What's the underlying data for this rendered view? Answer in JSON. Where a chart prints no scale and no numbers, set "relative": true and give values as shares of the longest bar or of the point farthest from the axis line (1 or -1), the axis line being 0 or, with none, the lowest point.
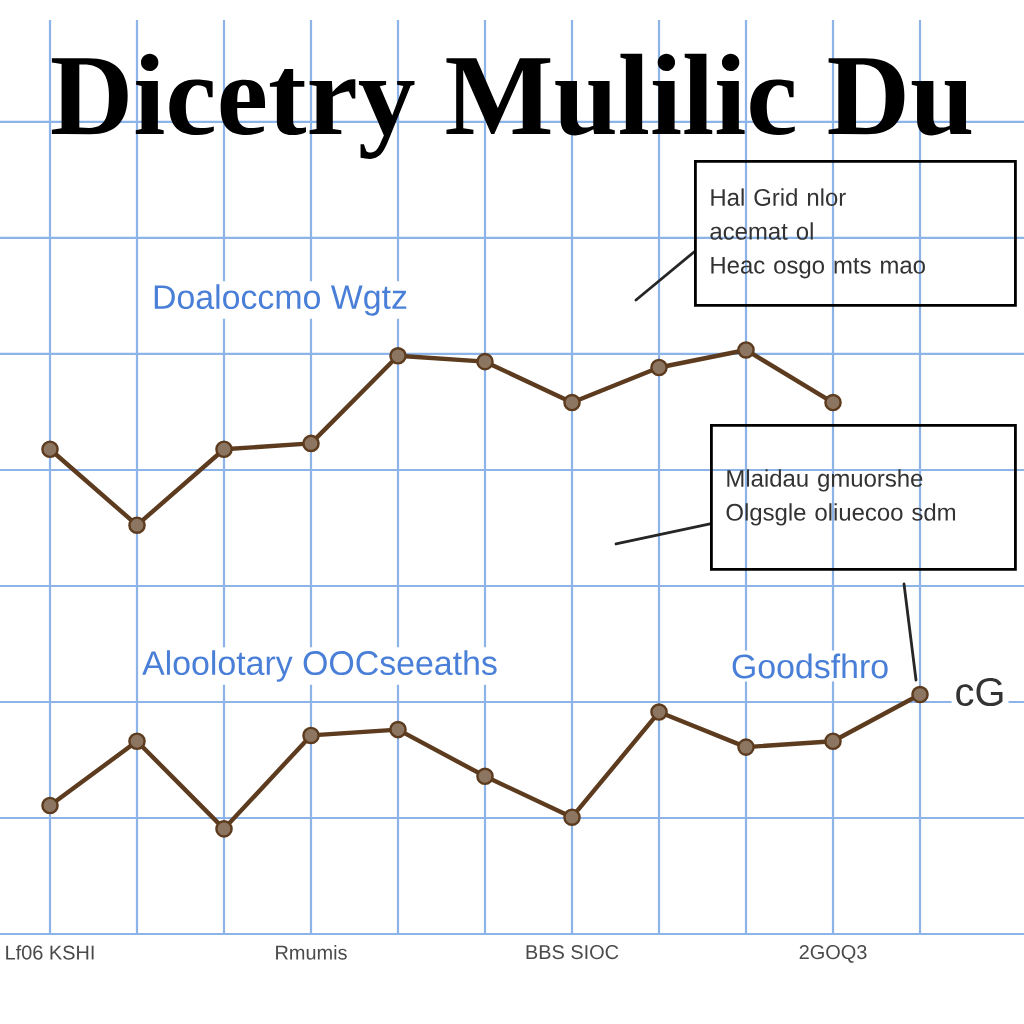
{
  "chart_data": {
    "type": "line",
    "title": "Dicetry Mulilic Du",
    "relative": true,
    "grid": true,
    "marker": "circle",
    "line_style": "solid",
    "categories": [
      "Lf06 KSHI",
      null,
      null,
      "Rmumis",
      null,
      null,
      "BBS SIOC",
      null,
      null,
      "2GOQ3",
      null
    ],
    "series": [
      {
        "name": "Doaloccmo Wgtz",
        "color": "#5c3b1e",
        "values": [
          0.83,
          0.7,
          0.83,
          0.84,
          0.99,
          0.98,
          0.91,
          0.97,
          1.0,
          0.91,
          null
        ]
      },
      {
        "name": "Aloolotary OOCseeaths",
        "color": "#5c3b1e",
        "values": [
          0.22,
          0.33,
          0.18,
          0.34,
          0.35,
          0.27,
          0.2,
          0.38,
          0.32,
          0.33,
          0.41
        ]
      }
    ],
    "annotations": [
      "Hal Grid nlor",
      "acemat ol",
      "Heac osgo mts mao",
      "Mlaidau gmuorshe",
      "Olgsgle oliuecoo sdm",
      "Goodsfhro",
      "cG"
    ]
  }
}
